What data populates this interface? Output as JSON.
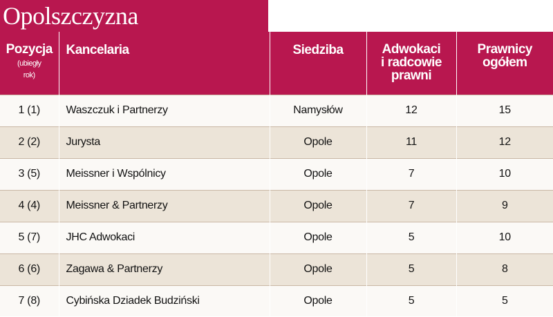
{
  "title": "Opolszczyzna",
  "headers": {
    "position": "Pozycja",
    "position_sub_1": "(ubiegły",
    "position_sub_2": "rok)",
    "firm": "Kancelaria",
    "seat": "Siedziba",
    "lawyers_1": "Adwokaci",
    "lawyers_2": "i radcowie",
    "lawyers_3": "prawni",
    "total_1": "Prawnicy",
    "total_2": "ogółem"
  },
  "rows": [
    {
      "position": "1  (1)",
      "firm": "Waszczuk i Partnerzy",
      "seat": "Namysłów",
      "lawyers": "12",
      "total": "15"
    },
    {
      "position": "2 (2)",
      "firm": "Jurysta",
      "seat": "Opole",
      "lawyers": "11",
      "total": "12"
    },
    {
      "position": "3 (5)",
      "firm": "Meissner i Wspólnicy",
      "seat": "Opole",
      "lawyers": "7",
      "total": "10"
    },
    {
      "position": "4 (4)",
      "firm": "Meissner & Partnerzy",
      "seat": "Opole",
      "lawyers": "7",
      "total": "9"
    },
    {
      "position": "5 (7)",
      "firm": "JHC Adwokaci",
      "seat": "Opole",
      "lawyers": "5",
      "total": "10"
    },
    {
      "position": "6 (6)",
      "firm": "Zagawa & Partnerzy",
      "seat": "Opole",
      "lawyers": "5",
      "total": "8"
    },
    {
      "position": "7 (8)",
      "firm": "Cybińska Dziadek Budziński",
      "seat": "Opole",
      "lawyers": "5",
      "total": "5"
    }
  ],
  "colors": {
    "header": "#b8174f",
    "row_light": "#fbf9f6",
    "row_dark": "#ece4d8"
  }
}
